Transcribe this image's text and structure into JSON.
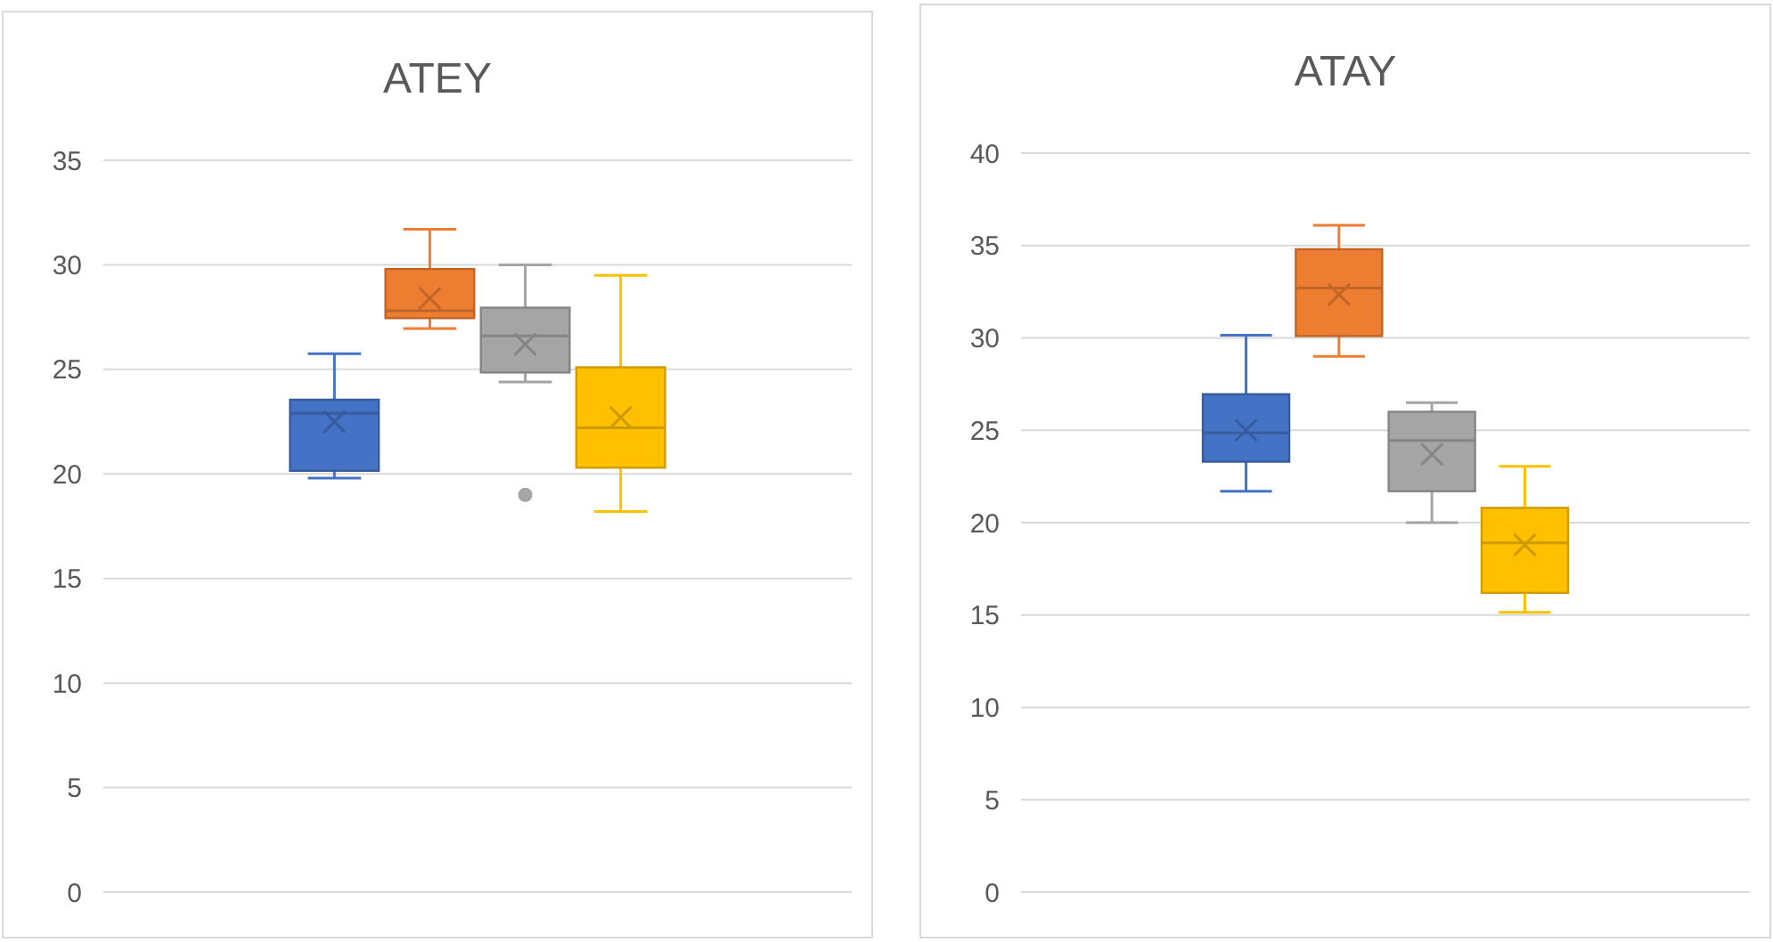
{
  "chart_data": [
    {
      "type": "box",
      "title": "ATEY",
      "categories": [
        null
      ],
      "ylim": [
        0,
        35
      ],
      "yticks": [
        0,
        5,
        10,
        15,
        20,
        25,
        30,
        35
      ],
      "grid": "y",
      "series": [
        {
          "color": "#4472c4",
          "boxes": [
            {
              "low": 19.8,
              "q1": 20.15,
              "median": 22.9,
              "q3": 23.55,
              "high": 25.75,
              "mean": 22.5
            }
          ]
        },
        {
          "color": "#ed7d31",
          "boxes": [
            {
              "low": 26.95,
              "q1": 27.45,
              "median": 27.8,
              "q3": 29.8,
              "high": 31.7,
              "mean": 28.4
            }
          ]
        },
        {
          "color": "#a5a5a5",
          "boxes": [
            {
              "low": 24.4,
              "q1": 24.85,
              "median": 26.6,
              "q3": 27.95,
              "high": 30,
              "mean": 26.2,
              "outliers": [
                19
              ]
            }
          ]
        },
        {
          "color": "#ffc000",
          "boxes": [
            {
              "low": 18.2,
              "q1": 20.3,
              "median": 22.2,
              "q3": 25.1,
              "high": 29.5,
              "mean": 22.7
            }
          ]
        }
      ]
    },
    {
      "type": "box",
      "title": "ATAY",
      "categories": [
        null
      ],
      "ylim": [
        0,
        40
      ],
      "yticks": [
        0,
        5,
        10,
        15,
        20,
        25,
        30,
        35,
        40
      ],
      "grid": "y",
      "series": [
        {
          "color": "#4472c4",
          "boxes": [
            {
              "low": 21.7,
              "q1": 23.3,
              "median": 24.85,
              "q3": 26.95,
              "high": 30.15,
              "mean": 25
            }
          ]
        },
        {
          "color": "#ed7d31",
          "boxes": [
            {
              "low": 29,
              "q1": 30.1,
              "median": 32.7,
              "q3": 34.8,
              "high": 36.1,
              "mean": 32.35
            }
          ]
        },
        {
          "color": "#a5a5a5",
          "boxes": [
            {
              "low": 20,
              "q1": 21.7,
              "median": 24.45,
              "q3": 26,
              "high": 26.5,
              "mean": 23.7
            }
          ]
        },
        {
          "color": "#ffc000",
          "boxes": [
            {
              "low": 15.15,
              "q1": 16.2,
              "median": 18.9,
              "q3": 20.8,
              "high": 23.05,
              "mean": 18.8
            }
          ]
        }
      ]
    }
  ]
}
